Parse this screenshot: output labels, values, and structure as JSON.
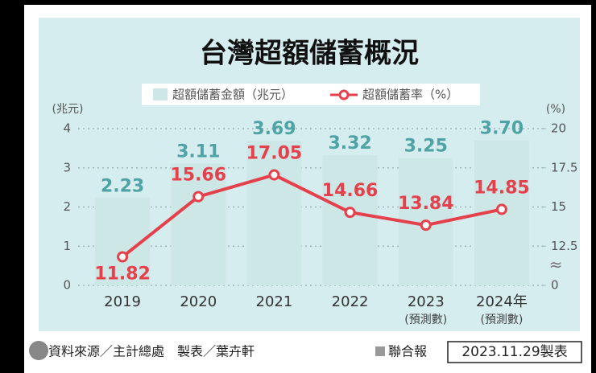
{
  "chart_data": {
    "type": "bar_line",
    "title": "台灣超額儲蓄概況",
    "categories": [
      "2019",
      "2020",
      "2021",
      "2022",
      "2023",
      "2024年"
    ],
    "category_notes": [
      null,
      null,
      null,
      null,
      "(預測數)",
      "(預測數)"
    ],
    "series": [
      {
        "name": "超額儲蓄金額（兆元）",
        "color": "#cde6e6",
        "label_color": "#4fa3a5",
        "type": "bar",
        "values": [
          2.23,
          3.11,
          3.69,
          3.32,
          3.25,
          3.7
        ],
        "value_labels": [
          "2.23",
          "3.11",
          "3.69",
          "3.32",
          "3.25",
          "3.70"
        ]
      },
      {
        "name": "超額儲蓄率（%）",
        "color": "#e5414c",
        "label_color": "#e5414c",
        "type": "line",
        "axis": "y2",
        "values": [
          11.82,
          15.66,
          17.05,
          14.66,
          13.84,
          14.85
        ]
      }
    ],
    "y_label": "(兆元)",
    "ylim": [
      0,
      4
    ],
    "yticks": [
      0,
      1,
      2,
      3,
      4
    ],
    "y2_label": "(%)",
    "y2lim": [
      0,
      20
    ],
    "y2ticks": [
      0,
      12.5,
      15,
      17.5,
      20
    ],
    "y2_break": [
      0,
      10
    ],
    "y2_break_mark": "≈",
    "grid": true,
    "footer": {
      "source": "資料來源／主計總處　製表／葉卉軒",
      "publisher": "聯合報",
      "date": "2023.11.29製表"
    }
  }
}
